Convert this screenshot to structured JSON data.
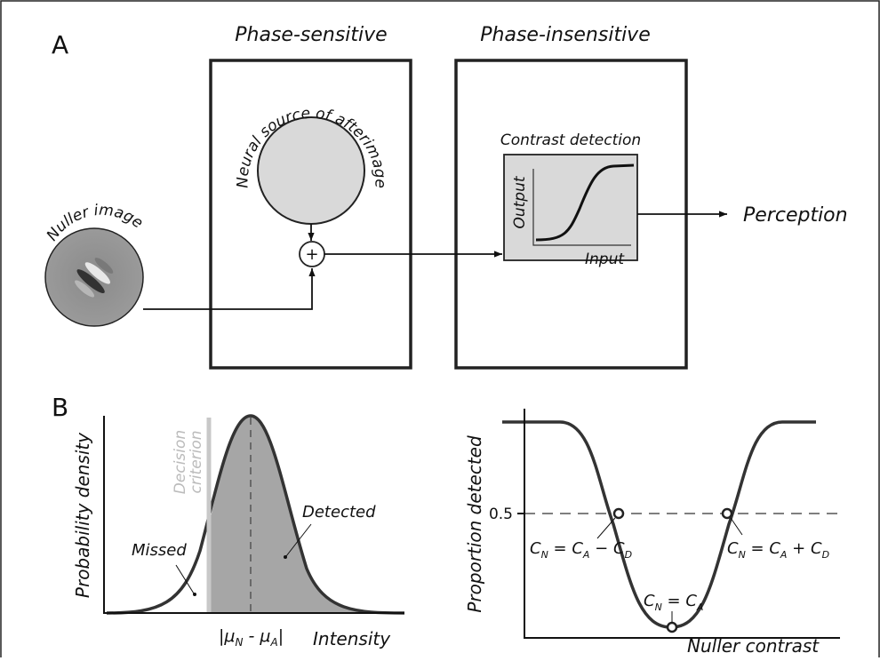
{
  "panel_a": {
    "letter": "A",
    "phase_sensitive": "Phase-sensitive",
    "phase_insensitive": "Phase-insensitive",
    "neural_source": "Neural source of afterimage",
    "nuller_image": "Nuller image",
    "plus": "+",
    "contrast_detection": "Contrast detection",
    "output": "Output",
    "input": "Input",
    "perception": "Perception"
  },
  "panel_b": {
    "letter": "B",
    "left": {
      "y_label": "Probability density",
      "decision_criterion": [
        "Decision",
        "criterion"
      ],
      "missed": "Missed",
      "detected": "Detected",
      "mean_diff": [
        "|",
        "μ",
        "N",
        " - ",
        "μ",
        "A",
        "|"
      ],
      "x_label": "Intensity"
    },
    "right": {
      "y_label": "Proportion detected",
      "y_tick": "0.5",
      "eq_low": [
        "C",
        "N",
        " = ",
        "C",
        "A",
        " − ",
        "C",
        "D"
      ],
      "eq_mid": [
        "C",
        "N",
        " = ",
        "C",
        "A"
      ],
      "eq_high": [
        "C",
        "N",
        " = ",
        "C",
        "A",
        " + ",
        "C",
        "D"
      ],
      "x_label": "Nuller contrast"
    }
  }
}
